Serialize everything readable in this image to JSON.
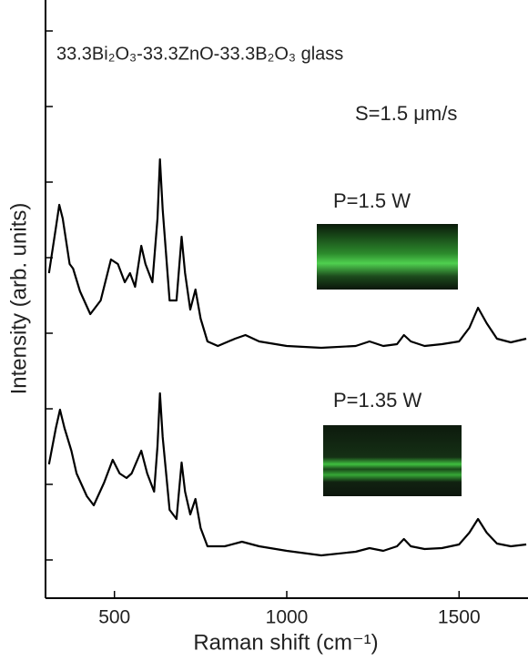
{
  "chart_data": {
    "type": "line",
    "xlabel": "Raman shift (cm⁻¹)",
    "ylabel": "Intensity (arb. units)",
    "annotations": [
      "33.3Bi₂O₃-33.3ZnO-33.3B₂O₃ glass",
      "S=1.5 μm/s",
      "P=1.5 W",
      "P=1.35 W"
    ],
    "xlim": [
      300,
      1700
    ],
    "xticks": [
      500,
      1000,
      1500
    ],
    "ylim": [
      0,
      65.7
    ],
    "yticks": [
      4.2,
      12.5,
      20.8,
      29.1,
      37.4,
      45.7,
      54,
      62.3
    ],
    "series": [
      {
        "color": "#000000",
        "x": [
          310,
          330,
          340,
          350,
          370,
          380,
          400,
          430,
          460,
          490,
          510,
          530,
          545,
          560,
          578,
          590,
          610,
          625,
          632,
          640,
          660,
          680,
          695,
          705,
          720,
          735,
          750,
          770,
          800,
          850,
          880,
          920,
          1000,
          1100,
          1200,
          1240,
          1280,
          1320,
          1340,
          1360,
          1400,
          1450,
          1500,
          1530,
          1555,
          1580,
          1610,
          1650,
          1695
        ],
        "values": [
          35.7,
          40.7,
          43.2,
          41.7,
          36.7,
          36.2,
          33.7,
          31.2,
          32.7,
          37.2,
          36.7,
          34.7,
          35.7,
          34.2,
          38.7,
          36.7,
          34.7,
          41.7,
          48.2,
          42.7,
          32.7,
          32.7,
          39.7,
          35.7,
          31.7,
          33.9,
          30.7,
          28.2,
          27.7,
          28.5,
          28.9,
          28.2,
          27.7,
          27.5,
          27.7,
          28.2,
          27.7,
          27.9,
          28.9,
          28.2,
          27.7,
          27.9,
          28.2,
          29.7,
          31.9,
          30.2,
          28.5,
          28.1,
          28.5
        ]
      },
      {
        "color": "#000000",
        "x": [
          310,
          330,
          342,
          355,
          375,
          390,
          420,
          440,
          470,
          495,
          515,
          535,
          550,
          578,
          595,
          615,
          625,
          632,
          640,
          660,
          680,
          695,
          705,
          720,
          735,
          750,
          770,
          820,
          870,
          920,
          1000,
          1100,
          1200,
          1240,
          1280,
          1320,
          1340,
          1360,
          1400,
          1450,
          1500,
          1530,
          1555,
          1580,
          1610,
          1650,
          1695
        ],
        "values": [
          14.7,
          18.7,
          20.7,
          18.7,
          16.2,
          13.7,
          11.2,
          10.2,
          12.7,
          15.2,
          13.7,
          13.2,
          13.7,
          16.2,
          13.7,
          11.7,
          16.7,
          22.5,
          17.7,
          9.7,
          8.7,
          14.9,
          11.7,
          9.2,
          10.9,
          7.7,
          5.7,
          5.7,
          6.2,
          5.7,
          5.2,
          4.7,
          5.1,
          5.5,
          5.2,
          5.7,
          6.5,
          5.7,
          5.4,
          5.5,
          5.9,
          7.2,
          8.7,
          7.2,
          6.0,
          5.7,
          5.9
        ]
      }
    ]
  }
}
